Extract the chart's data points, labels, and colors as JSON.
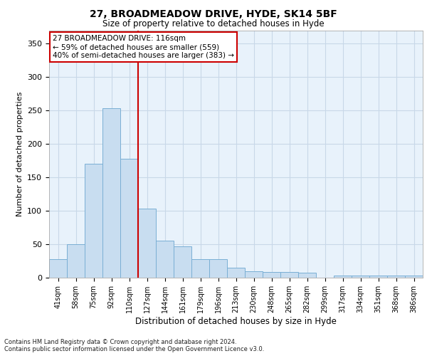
{
  "title_line1": "27, BROADMEADOW DRIVE, HYDE, SK14 5BF",
  "title_line2": "Size of property relative to detached houses in Hyde",
  "xlabel": "Distribution of detached houses by size in Hyde",
  "ylabel": "Number of detached properties",
  "categories": [
    "41sqm",
    "58sqm",
    "75sqm",
    "92sqm",
    "110sqm",
    "127sqm",
    "144sqm",
    "161sqm",
    "179sqm",
    "196sqm",
    "213sqm",
    "230sqm",
    "248sqm",
    "265sqm",
    "282sqm",
    "299sqm",
    "317sqm",
    "334sqm",
    "351sqm",
    "368sqm",
    "386sqm"
  ],
  "values": [
    28,
    50,
    170,
    253,
    178,
    103,
    55,
    47,
    28,
    28,
    15,
    10,
    9,
    8,
    7,
    0,
    3,
    3,
    3,
    3,
    3
  ],
  "bar_color": "#c8ddf0",
  "bar_edge_color": "#7aafd4",
  "grid_color": "#c8d8e8",
  "background_color": "#e8f2fb",
  "vline_x_index": 4,
  "vline_color": "#cc0000",
  "annotation_text": "27 BROADMEADOW DRIVE: 116sqm\n← 59% of detached houses are smaller (559)\n40% of semi-detached houses are larger (383) →",
  "annotation_box_color": "#ffffff",
  "annotation_box_edge_color": "#cc0000",
  "ylim": [
    0,
    370
  ],
  "yticks": [
    0,
    50,
    100,
    150,
    200,
    250,
    300,
    350
  ],
  "footer_line1": "Contains HM Land Registry data © Crown copyright and database right 2024.",
  "footer_line2": "Contains public sector information licensed under the Open Government Licence v3.0."
}
